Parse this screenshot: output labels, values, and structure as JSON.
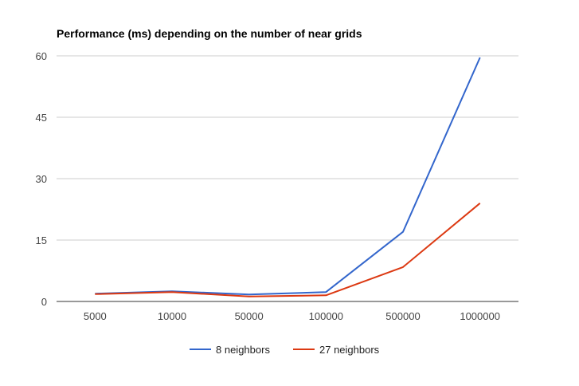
{
  "chart_data": {
    "type": "line",
    "title": "Performance (ms) depending on the number of near grids",
    "categories": [
      "5000",
      "10000",
      "50000",
      "100000",
      "500000",
      "1000000"
    ],
    "series": [
      {
        "name": "8 neighbors",
        "color": "#3366cc",
        "values": [
          1.9,
          2.5,
          1.7,
          2.3,
          17.0,
          59.6
        ]
      },
      {
        "name": "27 neighbors",
        "color": "#dc3912",
        "values": [
          1.8,
          2.3,
          1.2,
          1.5,
          8.4,
          24.0
        ]
      }
    ],
    "yticks": [
      0,
      15,
      30,
      45,
      60
    ],
    "ylim": [
      0,
      60
    ],
    "grid": true,
    "legend_position": "bottom"
  }
}
